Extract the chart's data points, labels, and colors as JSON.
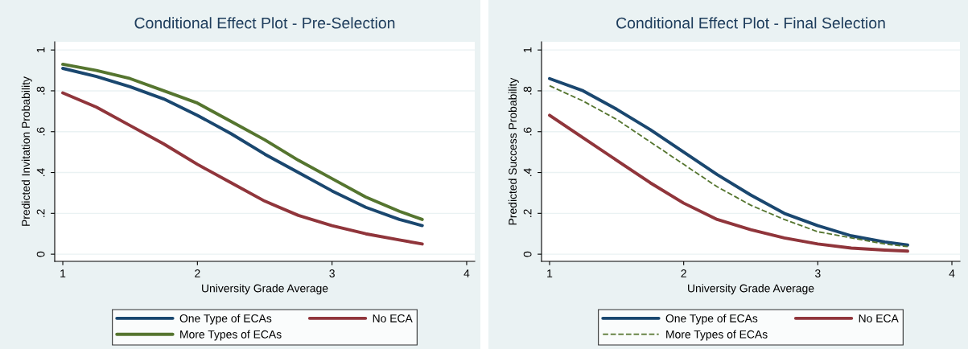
{
  "chart_data": [
    {
      "type": "line",
      "title": "Conditional Effect Plot - Pre-Selection",
      "xlabel": "University Grade Average",
      "ylabel": "Predicted Invitation Probability",
      "x": [
        1,
        1.25,
        1.5,
        1.75,
        2,
        2.25,
        2.5,
        2.75,
        3,
        3.25,
        3.5,
        3.67
      ],
      "series": [
        {
          "name": "One Type of ECAs",
          "color": "#1a476f",
          "line_style": "solid",
          "values": [
            0.91,
            0.87,
            0.82,
            0.76,
            0.68,
            0.59,
            0.49,
            0.4,
            0.31,
            0.23,
            0.17,
            0.14
          ]
        },
        {
          "name": "No ECA",
          "color": "#90353b",
          "line_style": "solid",
          "values": [
            0.79,
            0.72,
            0.63,
            0.54,
            0.44,
            0.35,
            0.26,
            0.19,
            0.14,
            0.1,
            0.07,
            0.05
          ]
        },
        {
          "name": "More Types of ECAs",
          "color": "#55752f",
          "line_style": "solid",
          "values": [
            0.93,
            0.9,
            0.86,
            0.8,
            0.74,
            0.65,
            0.56,
            0.46,
            0.37,
            0.28,
            0.21,
            0.17
          ]
        }
      ],
      "xlim": [
        0.94,
        4.06
      ],
      "xticks": [
        1,
        2,
        3,
        4
      ],
      "ylim": [
        -0.035,
        1.04
      ],
      "yticks": [
        {
          "value": 0,
          "label": "0"
        },
        {
          "value": 0.2,
          "label": ".2"
        },
        {
          "value": 0.4,
          "label": ".4"
        },
        {
          "value": 0.6,
          "label": ".6"
        },
        {
          "value": 0.8,
          "label": ".8"
        },
        {
          "value": 1,
          "label": "1"
        }
      ],
      "grid": "y",
      "legend": "bottom",
      "marker": "none"
    },
    {
      "type": "line",
      "title": "Conditional Effect Plot - Final Selection",
      "xlabel": "University Grade Average",
      "ylabel": "Predicted Success Probability",
      "x": [
        1,
        1.25,
        1.5,
        1.75,
        2,
        2.25,
        2.5,
        2.75,
        3,
        3.25,
        3.5,
        3.67
      ],
      "series": [
        {
          "name": "One Type of ECAs",
          "color": "#1a476f",
          "line_style": "solid",
          "values": [
            0.86,
            0.8,
            0.71,
            0.61,
            0.5,
            0.39,
            0.29,
            0.2,
            0.14,
            0.09,
            0.06,
            0.045
          ]
        },
        {
          "name": "No ECA",
          "color": "#90353b",
          "line_style": "solid",
          "values": [
            0.68,
            0.57,
            0.46,
            0.35,
            0.25,
            0.17,
            0.12,
            0.08,
            0.05,
            0.03,
            0.02,
            0.015
          ]
        },
        {
          "name": "More Types of ECAs",
          "color": "#55752f",
          "line_style": "dashed",
          "values": [
            0.825,
            0.75,
            0.66,
            0.55,
            0.44,
            0.33,
            0.24,
            0.17,
            0.11,
            0.08,
            0.05,
            0.037
          ]
        }
      ],
      "xlim": [
        0.94,
        4.06
      ],
      "xticks": [
        1,
        2,
        3,
        4
      ],
      "ylim": [
        -0.035,
        1.04
      ],
      "yticks": [
        {
          "value": 0,
          "label": "0"
        },
        {
          "value": 0.2,
          "label": ".2"
        },
        {
          "value": 0.4,
          "label": ".4"
        },
        {
          "value": 0.6,
          "label": ".6"
        },
        {
          "value": 0.8,
          "label": ".8"
        },
        {
          "value": 1,
          "label": "1"
        }
      ],
      "grid": "y",
      "legend": "bottom",
      "marker": "none"
    }
  ]
}
